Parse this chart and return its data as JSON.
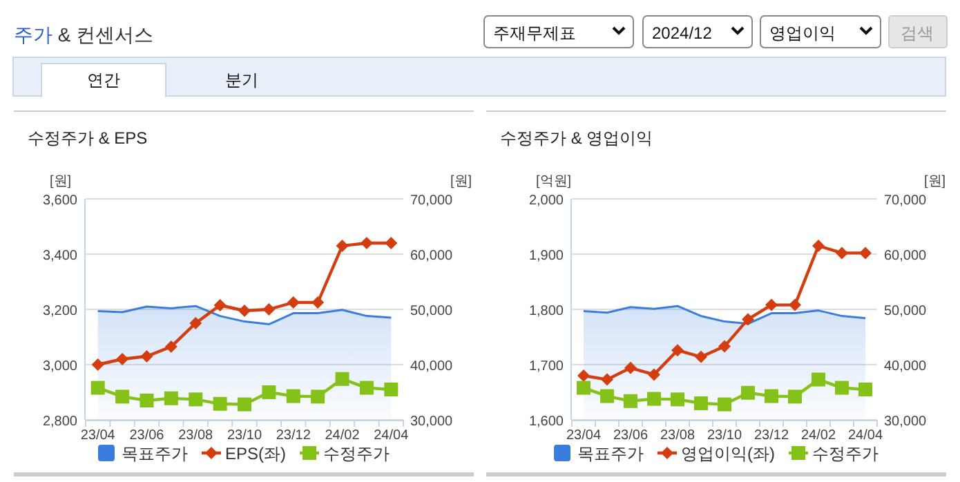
{
  "chart_data": [
    {
      "type": "other",
      "title": "주가 & 컨센서스",
      "annotations": [
        "주재무제표",
        "2024/12",
        "영업이익",
        "검색",
        "연간",
        "분기"
      ]
    },
    {
      "type": "line",
      "title": "수정주가 & EPS",
      "ylabel": "[원]",
      "y2label": "[원]",
      "categories": [
        "23/04",
        null,
        "23/06",
        null,
        "23/08",
        null,
        "23/10",
        null,
        "23/12",
        null,
        "24/02",
        null,
        "24/04"
      ],
      "ylim": [
        2800,
        3600
      ],
      "yticks": [
        {
          "value": 2800,
          "label": "2,800"
        },
        {
          "value": 3000,
          "label": "3,000"
        },
        {
          "value": 3200,
          "label": "3,200"
        },
        {
          "value": 3400,
          "label": "3,400"
        },
        {
          "value": 3600,
          "label": "3,600"
        }
      ],
      "y2lim": [
        30000,
        70000
      ],
      "y2ticks": [
        {
          "value": 30000,
          "label": "30,000"
        },
        {
          "value": 40000,
          "label": "40,000"
        },
        {
          "value": 50000,
          "label": "50,000"
        },
        {
          "value": 60000,
          "label": "60,000"
        },
        {
          "value": 70000,
          "label": "70,000"
        }
      ],
      "grid": "y",
      "legend": "bottom",
      "series": [
        {
          "name": "목표주가",
          "type": "area",
          "axis": "y2",
          "color": "#3b7ddd",
          "values": [
            49700,
            49500,
            50500,
            50200,
            50600,
            48800,
            47800,
            47300,
            49300,
            49300,
            49900,
            48800,
            48500
          ]
        },
        {
          "name": "EPS(좌)",
          "type": "line",
          "marker": "diamond",
          "color": "#d43d0f",
          "values": [
            3000,
            3020,
            3030,
            3065,
            3150,
            3215,
            3195,
            3200,
            3225,
            3225,
            3430,
            3440,
            3440
          ]
        },
        {
          "name": "수정주가",
          "type": "line",
          "axis": "y2",
          "marker": "square",
          "color": "#84c21a",
          "values": [
            35800,
            34200,
            33500,
            33900,
            33700,
            32900,
            32800,
            35000,
            34300,
            34200,
            37400,
            35800,
            35500
          ]
        }
      ]
    },
    {
      "type": "line",
      "title": "수정주가 & 영업이익",
      "ylabel": "[억원]",
      "y2label": "[원]",
      "categories": [
        "23/04",
        null,
        "23/06",
        null,
        "23/08",
        null,
        "23/10",
        null,
        "23/12",
        null,
        "24/02",
        null,
        "24/04"
      ],
      "ylim": [
        1600,
        2000
      ],
      "yticks": [
        {
          "value": 1600,
          "label": "1,600"
        },
        {
          "value": 1700,
          "label": "1,700"
        },
        {
          "value": 1800,
          "label": "1,800"
        },
        {
          "value": 1900,
          "label": "1,900"
        },
        {
          "value": 2000,
          "label": "2,000"
        }
      ],
      "y2lim": [
        30000,
        70000
      ],
      "y2ticks": [
        {
          "value": 30000,
          "label": "30,000"
        },
        {
          "value": 40000,
          "label": "40,000"
        },
        {
          "value": 50000,
          "label": "50,000"
        },
        {
          "value": 60000,
          "label": "60,000"
        },
        {
          "value": 70000,
          "label": "70,000"
        }
      ],
      "grid": "y",
      "legend": "bottom",
      "series": [
        {
          "name": "목표주가",
          "type": "area",
          "axis": "y2",
          "color": "#3b7ddd",
          "values": [
            49700,
            49400,
            50400,
            50100,
            50600,
            48800,
            47800,
            47400,
            49300,
            49300,
            49800,
            48800,
            48400
          ]
        },
        {
          "name": "영업이익(좌)",
          "type": "line",
          "marker": "diamond",
          "color": "#d43d0f",
          "values": [
            1680,
            1673,
            1694,
            1682,
            1726,
            1714,
            1733,
            1782,
            1808,
            1808,
            1915,
            1902,
            1902
          ]
        },
        {
          "name": "수정주가",
          "type": "line",
          "axis": "y2",
          "marker": "square",
          "color": "#84c21a",
          "values": [
            35800,
            34300,
            33400,
            33800,
            33700,
            33000,
            32800,
            34900,
            34300,
            34200,
            37300,
            35800,
            35500
          ]
        }
      ]
    }
  ]
}
